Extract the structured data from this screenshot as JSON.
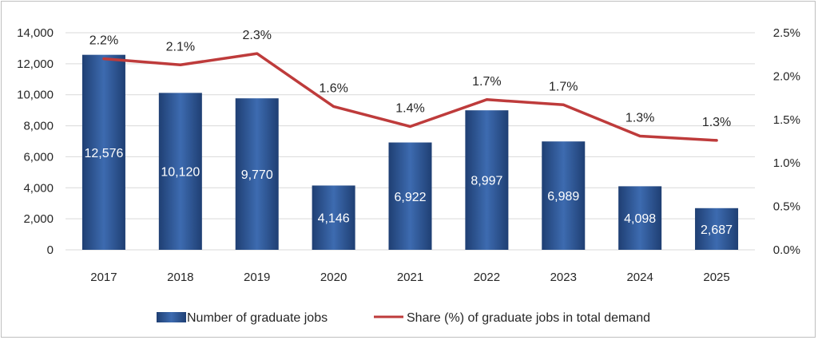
{
  "chart_data": {
    "type": "bar",
    "categories": [
      "2017",
      "2018",
      "2019",
      "2020",
      "2021",
      "2022",
      "2023",
      "2024",
      "2025"
    ],
    "series": [
      {
        "name": "Number of graduate jobs",
        "type": "bar",
        "axis": "left",
        "values": [
          12576,
          10120,
          9770,
          4146,
          6922,
          8997,
          6989,
          4098,
          2687
        ],
        "labels": [
          "12,576",
          "10,120",
          "9,770",
          "4,146",
          "6,922",
          "8,997",
          "6,989",
          "4,098",
          "2,687"
        ],
        "color": "#2f5597"
      },
      {
        "name": "Share (%) of graduate jobs in total demand",
        "type": "line",
        "axis": "right",
        "values": [
          2.2,
          2.13,
          2.26,
          1.65,
          1.42,
          1.73,
          1.67,
          1.31,
          1.26
        ],
        "labels": [
          "2.2%",
          "2.1%",
          "2.3%",
          "1.6%",
          "1.4%",
          "1.7%",
          "1.7%",
          "1.3%",
          "1.3%"
        ],
        "color": "#be3b3b"
      }
    ],
    "y_left": {
      "min": 0,
      "max": 14000,
      "ticks": [
        0,
        2000,
        4000,
        6000,
        8000,
        10000,
        12000,
        14000
      ],
      "tick_labels": [
        "0",
        "2,000",
        "4,000",
        "6,000",
        "8,000",
        "10,000",
        "12,000",
        "14,000"
      ]
    },
    "y_right": {
      "min": 0,
      "max": 2.5,
      "ticks": [
        0,
        0.5,
        1.0,
        1.5,
        2.0,
        2.5
      ],
      "tick_labels": [
        "0.0%",
        "0.5%",
        "1.0%",
        "1.5%",
        "2.0%",
        "2.5%"
      ]
    },
    "grid": true,
    "legend": "bottom"
  }
}
